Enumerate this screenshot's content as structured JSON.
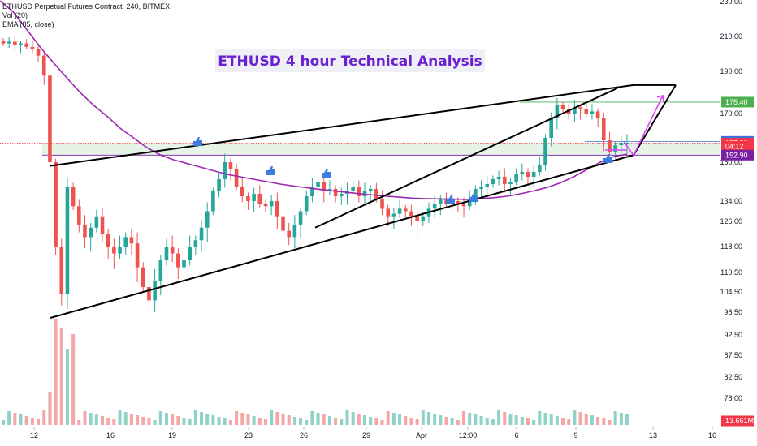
{
  "legend": {
    "symbol_line": "ETHUSD Perpetual Futures Contract, 240, BITMEX",
    "volume_line": "Vol (20)",
    "ema_line": "EMA (85, close)"
  },
  "title_banner": "ETHUSD 4 hour Technical Analysis",
  "colors": {
    "up": "#26a69a",
    "down": "#ef5350",
    "up_volume": "#8fd3c8",
    "down_volume": "#f5a7a5",
    "ema": "#9c27b0",
    "trendline": "#000000",
    "forecast": "#e040fb",
    "title": "#6a1fd1",
    "level_green": "#4caf50",
    "level_blue": "#3d6fdc",
    "level_red": "#f23645",
    "level_purple": "#7b1fa2",
    "thumbs": "#3d7be0"
  },
  "chart_data": {
    "type": "candlestick",
    "title": "ETHUSD 4 hour Technical Analysis",
    "symbol": "ETHUSD Perpetual Futures Contract",
    "timeframe": "240",
    "exchange": "BITMEX",
    "indicators": [
      "Vol (20)",
      "EMA (85, close)"
    ],
    "y_ticks": [
      "230.00",
      "210.00",
      "190.00",
      "170.00",
      "150.00",
      "134.00",
      "126.00",
      "118.00",
      "110.50",
      "104.50",
      "98.50",
      "92.50",
      "87.50",
      "82.50",
      "78.00"
    ],
    "x_ticks": [
      "12",
      "16",
      "19",
      "23",
      "26",
      "29",
      "Apr",
      "12:00",
      "6",
      "9",
      "13",
      "16"
    ],
    "ylim": [
      75,
      232
    ],
    "price_tags": [
      {
        "label": "175.40",
        "value": 175.4,
        "color": "level_green"
      },
      {
        "label": "158.55",
        "value": 158.55,
        "color": "level_blue"
      },
      {
        "label": "157.80",
        "value": 157.8,
        "color": "level_red"
      },
      {
        "label": "04:12",
        "value": 155.7,
        "color": "level_red"
      },
      {
        "label": "152.90",
        "value": 152.9,
        "color": "level_purple"
      },
      {
        "label": "13.661M",
        "value": 75.8,
        "color": "level_red"
      }
    ],
    "approx_candles_close": [
      206,
      207,
      205,
      206,
      204,
      203,
      199,
      188,
      150,
      118,
      104,
      140,
      132,
      125,
      121,
      124,
      128,
      122,
      118,
      116,
      118,
      121,
      119,
      112,
      106,
      102,
      108,
      114,
      118,
      116,
      112,
      114,
      118,
      120,
      124,
      130,
      138,
      143,
      150,
      147,
      140,
      136,
      134,
      137,
      133,
      132,
      134,
      128,
      123,
      121,
      125,
      130,
      136,
      140,
      142,
      138,
      139,
      136,
      137,
      138,
      140,
      136,
      138,
      139,
      135,
      131,
      128,
      129,
      131,
      130,
      128,
      126,
      128,
      131,
      133,
      135,
      133,
      134,
      133,
      132,
      135,
      139,
      140,
      141,
      143,
      144,
      141,
      142,
      145,
      146,
      144,
      146,
      149,
      160,
      168,
      174,
      172,
      170,
      173,
      172,
      170,
      171,
      168,
      159,
      154,
      157,
      158,
      158
    ],
    "ema_85": [
      232,
      224,
      214,
      204,
      195,
      187,
      180,
      174,
      169,
      164,
      160,
      156,
      153,
      151,
      149.5,
      148,
      146.5,
      145,
      144,
      143,
      142,
      141,
      140.2,
      139.5,
      138.8,
      138.2,
      137.6,
      137,
      136.5,
      136,
      135.6,
      135.2,
      135,
      134.9,
      134.8,
      134.7,
      135,
      135.4,
      136,
      137,
      138.2,
      139.6,
      141.5,
      144,
      147,
      150,
      152.3,
      153.3
    ],
    "trendlines": [
      {
        "name": "wedge-upper",
        "from": [
          "11-12",
          148.5
        ],
        "to": [
          "Apr-12",
          183.5
        ]
      },
      {
        "name": "wedge-lower",
        "from": [
          "11-12",
          97
        ],
        "to": [
          "Apr-12",
          152.9
        ]
      },
      {
        "name": "inner-channel",
        "from": [
          "Mar-25",
          124
        ],
        "to": [
          "Apr-10",
          182
        ]
      }
    ],
    "forecast_path": [
      [
        "Apr-11",
        158.5
      ],
      [
        "Apr-12",
        152.8
      ],
      [
        "Apr-13",
        178.5
      ]
    ],
    "annotations": [
      "thumbs-up markers along EMA touches"
    ]
  }
}
